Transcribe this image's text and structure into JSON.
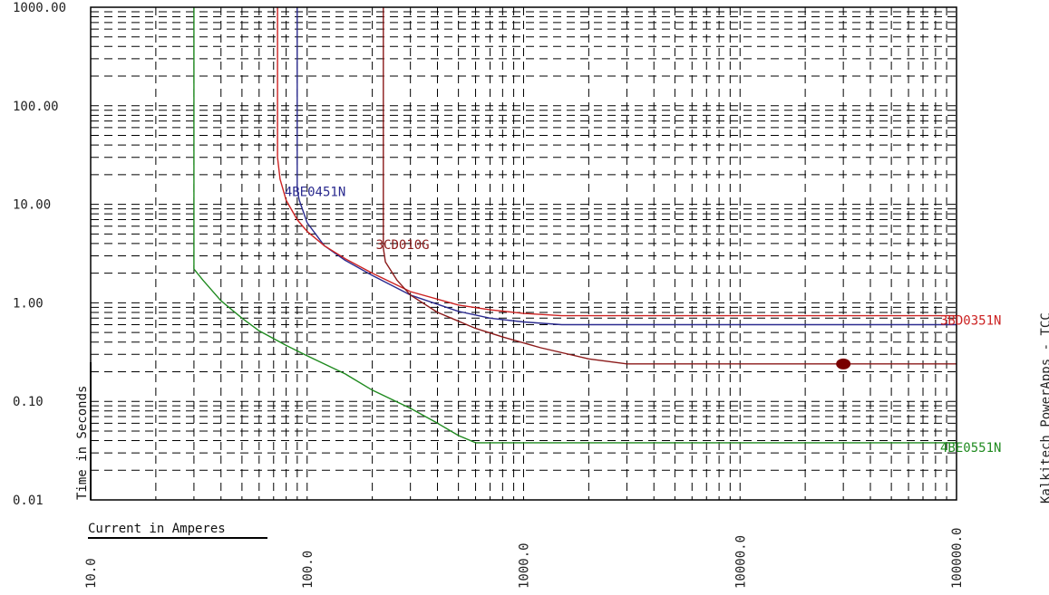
{
  "side_title": "Kalkitech PowerApps - TCC",
  "chart_data": {
    "type": "line",
    "title": "",
    "xlabel": "Current in Amperes",
    "ylabel": "Time in Seconds",
    "xscale": "log",
    "yscale": "log",
    "xlim": [
      10,
      100000
    ],
    "ylim": [
      0.01,
      1000
    ],
    "grid": true,
    "x_ticks": [
      10,
      100,
      1000,
      10000,
      100000
    ],
    "x_tick_labels": [
      "10.0",
      "100.0",
      "1000.0",
      "10000.0",
      "100000.0"
    ],
    "y_ticks": [
      0.01,
      0.1,
      1,
      10,
      100,
      1000
    ],
    "y_tick_labels": [
      "0.01",
      "0.10",
      "1.00",
      "10.00",
      "100.00",
      "1000.00"
    ],
    "series": [
      {
        "name": "4BE0551N",
        "color": "#1f8a1f",
        "x": [
          30,
          30,
          33,
          40,
          50,
          60,
          80,
          100,
          150,
          200,
          300,
          400,
          500,
          600,
          100000
        ],
        "y": [
          2000,
          2.2,
          1.7,
          1.05,
          0.7,
          0.52,
          0.37,
          0.29,
          0.19,
          0.13,
          0.085,
          0.06,
          0.045,
          0.038,
          0.038
        ]
      },
      {
        "name": "4BE0451N",
        "color": "#2b2b8f",
        "x": [
          90,
          90,
          92,
          100,
          120,
          150,
          200,
          300,
          500,
          700,
          1000,
          1500,
          100000
        ],
        "y": [
          2000,
          14,
          11,
          6.5,
          3.8,
          2.7,
          1.9,
          1.2,
          0.82,
          0.7,
          0.64,
          0.6,
          0.6
        ]
      },
      {
        "name": "3BD0351N",
        "color": "#cc2222",
        "x": [
          73,
          73,
          75,
          80,
          90,
          100,
          120,
          150,
          200,
          300,
          500,
          700,
          1000,
          1500,
          100000
        ],
        "y": [
          2000,
          30,
          18,
          11,
          7,
          5.3,
          3.8,
          2.8,
          2.0,
          1.3,
          0.95,
          0.85,
          0.78,
          0.74,
          0.74
        ]
      },
      {
        "name": "3CD010G",
        "color": "#8b1a1a",
        "x": [
          225,
          225,
          230,
          260,
          300,
          400,
          600,
          800,
          1200,
          2000,
          3000,
          100000
        ],
        "y": [
          2000,
          3.6,
          2.6,
          1.7,
          1.2,
          0.8,
          0.55,
          0.45,
          0.35,
          0.27,
          0.24,
          0.24
        ]
      }
    ],
    "series_labels": [
      {
        "text": "4BE0451N",
        "color": "#2b2b8f",
        "anchor_x": 90,
        "anchor_y": 14
      },
      {
        "text": "3CD010G",
        "color": "#8b1a1a",
        "anchor_x": 200,
        "anchor_y": 3.9
      },
      {
        "text": "3BD0351N",
        "color": "#cc2222",
        "anchor_x": 100000,
        "anchor_y": 0.74
      },
      {
        "text": "4BE0551N",
        "color": "#1f8a1f",
        "anchor_x": 100000,
        "anchor_y": 0.038
      }
    ],
    "markers": [
      {
        "x": 30000,
        "y": 0.24,
        "color": "#7a0000"
      }
    ]
  }
}
